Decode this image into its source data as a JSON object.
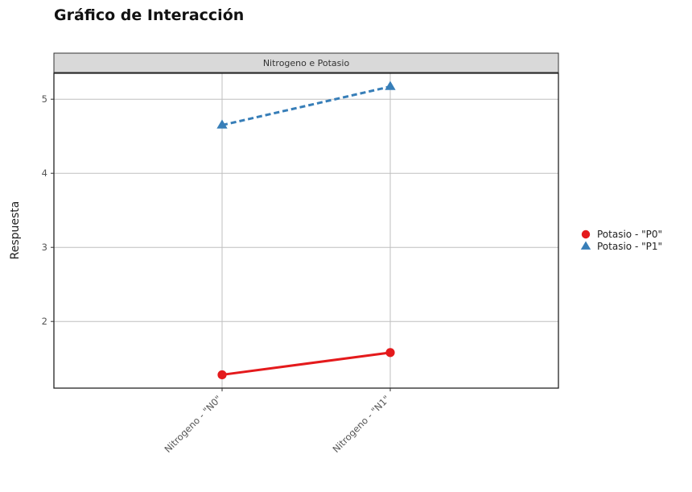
{
  "chart_data": {
    "type": "line",
    "title": "Gráfico de Interacción",
    "facet_label": "Nitrogeno e Potasio",
    "xlabel": "",
    "ylabel": "Respuesta",
    "categories": [
      "Nitrogeno - \"N0\"",
      "Nitrogeno - \"N1\""
    ],
    "ylim": [
      1.1,
      5.35
    ],
    "yticks": [
      2,
      3,
      4,
      5
    ],
    "grid": true,
    "legend_position": "right",
    "series": [
      {
        "name": "Potasio - \"P0\"",
        "values": [
          1.28,
          1.58
        ],
        "color": "#e41a1c",
        "marker": "circle",
        "line_style": "solid"
      },
      {
        "name": "Potasio - \"P1\"",
        "values": [
          4.65,
          5.17
        ],
        "color": "#377eb8",
        "marker": "triangle",
        "line_style": "dashed"
      }
    ]
  }
}
